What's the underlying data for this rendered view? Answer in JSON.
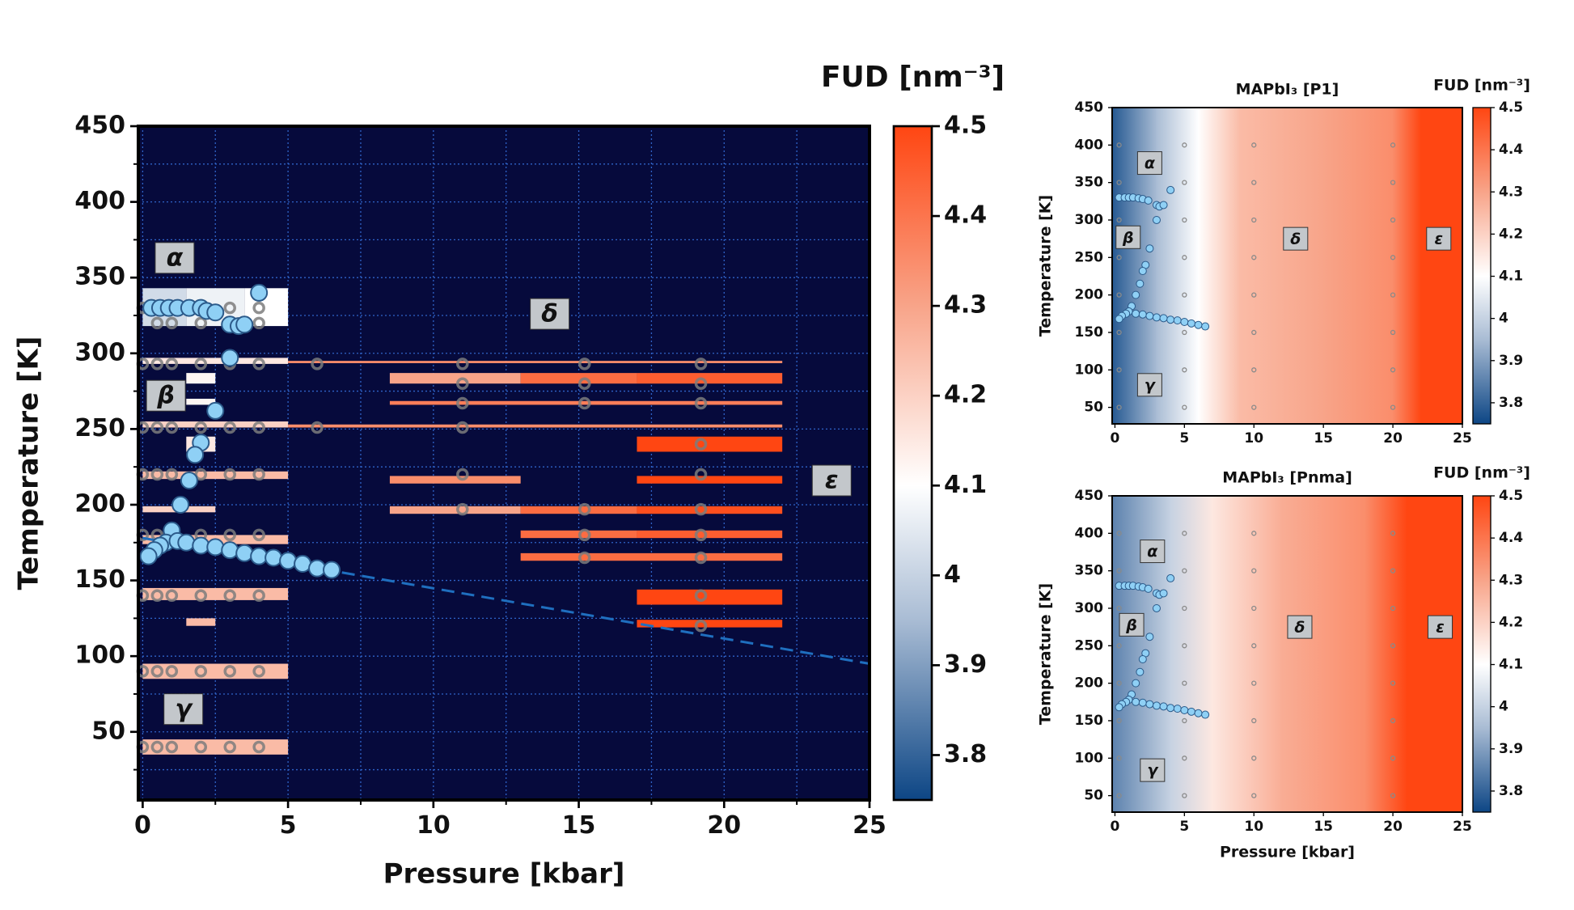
{
  "chart_data": [
    {
      "type": "phase_map",
      "colorbar_label": "FUD [nm⁻³]",
      "x_label": "Pressure [kbar]",
      "y_label": "Temperature [K]",
      "xlim": [
        -0.15,
        25
      ],
      "ylim": [
        5,
        450
      ],
      "xticks": [
        0,
        5,
        10,
        15,
        20,
        25
      ],
      "yticks": [
        50,
        100,
        150,
        200,
        250,
        300,
        350,
        400,
        450
      ],
      "minor_xticks": [
        2.5,
        7.5,
        12.5,
        17.5,
        22.5
      ],
      "minor_yticks": [
        25,
        75,
        125,
        175,
        225,
        275,
        325,
        375,
        425
      ],
      "clim": [
        3.75,
        4.5
      ],
      "cticks": [
        3.8,
        3.9,
        4,
        4.1,
        4.2,
        4.3,
        4.4,
        4.5
      ],
      "colormap": [
        [
          3.75,
          "#0d4685"
        ],
        [
          3.95,
          "#a9bcd4"
        ],
        [
          4.1,
          "#ffffff"
        ],
        [
          4.3,
          "#f8a489"
        ],
        [
          4.5,
          "#ff4612"
        ]
      ],
      "background": "#060a3c",
      "grid": true,
      "bars": [
        {
          "x": [
            0,
            1.5
          ],
          "y": [
            318,
            343
          ],
          "value": 4.02
        },
        {
          "x": [
            1.5,
            3.5
          ],
          "y": [
            318,
            343
          ],
          "value": 4.07
        },
        {
          "x": [
            3.5,
            5
          ],
          "y": [
            318,
            343
          ],
          "value": 4.1
        },
        {
          "x": [
            0,
            5
          ],
          "y": [
            293,
            297
          ],
          "value": 4.15
        },
        {
          "x": [
            5,
            22
          ],
          "y": [
            293.5,
            295
          ],
          "value": 4.35
        },
        {
          "x": [
            1.5,
            2.5
          ],
          "y": [
            280,
            287
          ],
          "value": 4.12
        },
        {
          "x": [
            8.5,
            13
          ],
          "y": [
            280,
            287
          ],
          "value": 4.3
        },
        {
          "x": [
            13,
            17
          ],
          "y": [
            280,
            287
          ],
          "value": 4.42
        },
        {
          "x": [
            17,
            22
          ],
          "y": [
            280,
            287
          ],
          "value": 4.45
        },
        {
          "x": [
            1.5,
            2.5
          ],
          "y": [
            266,
            270
          ],
          "value": 4.12
        },
        {
          "x": [
            8.5,
            22
          ],
          "y": [
            266,
            268.5
          ],
          "value": 4.38
        },
        {
          "x": [
            0,
            5
          ],
          "y": [
            251,
            255
          ],
          "value": 4.2
        },
        {
          "x": [
            5,
            22
          ],
          "y": [
            251,
            253
          ],
          "value": 4.35
        },
        {
          "x": [
            1.5,
            2.5
          ],
          "y": [
            235,
            245
          ],
          "value": 4.15
        },
        {
          "x": [
            17,
            22
          ],
          "y": [
            235,
            245
          ],
          "value": 4.5
        },
        {
          "x": [
            0,
            5
          ],
          "y": [
            217,
            222
          ],
          "value": 4.25
        },
        {
          "x": [
            8.5,
            13
          ],
          "y": [
            214,
            219
          ],
          "value": 4.35
        },
        {
          "x": [
            17,
            22
          ],
          "y": [
            214,
            219
          ],
          "value": 4.5
        },
        {
          "x": [
            0,
            2.5
          ],
          "y": [
            195,
            199
          ],
          "value": 4.2
        },
        {
          "x": [
            8.5,
            13
          ],
          "y": [
            194,
            199
          ],
          "value": 4.3
        },
        {
          "x": [
            13,
            17
          ],
          "y": [
            194,
            199
          ],
          "value": 4.42
        },
        {
          "x": [
            17,
            22
          ],
          "y": [
            194,
            199
          ],
          "value": 4.48
        },
        {
          "x": [
            0,
            5
          ],
          "y": [
            174,
            180
          ],
          "value": 4.25
        },
        {
          "x": [
            13,
            17
          ],
          "y": [
            178,
            183
          ],
          "value": 4.42
        },
        {
          "x": [
            17,
            22
          ],
          "y": [
            178,
            183
          ],
          "value": 4.45
        },
        {
          "x": [
            13,
            22
          ],
          "y": [
            163,
            168
          ],
          "value": 4.42
        },
        {
          "x": [
            0,
            5
          ],
          "y": [
            137,
            145
          ],
          "value": 4.25
        },
        {
          "x": [
            17,
            22
          ],
          "y": [
            134,
            144
          ],
          "value": 4.5
        },
        {
          "x": [
            1.5,
            2.5
          ],
          "y": [
            120,
            125
          ],
          "value": 4.25
        },
        {
          "x": [
            17,
            22
          ],
          "y": [
            119,
            124
          ],
          "value": 4.5
        },
        {
          "x": [
            0,
            5
          ],
          "y": [
            85,
            95
          ],
          "value": 4.25
        },
        {
          "x": [
            0,
            5
          ],
          "y": [
            35,
            45
          ],
          "value": 4.25
        }
      ],
      "measured": {
        "x": [
          0,
          0.5,
          1,
          2,
          3,
          4,
          0.5,
          1,
          2,
          3,
          4,
          0,
          0.5,
          1,
          2,
          3,
          4,
          6,
          0,
          0.5,
          1,
          2,
          3,
          4,
          6,
          0,
          0.5,
          1,
          2,
          3,
          4,
          0,
          0.5,
          1,
          2,
          3,
          4,
          0,
          0.5,
          1,
          2,
          3,
          4,
          0,
          0.5,
          1,
          2,
          3,
          4,
          0,
          0.5,
          1,
          2,
          3,
          4,
          11,
          11,
          11,
          11,
          11,
          11,
          15.2,
          15.2,
          15.2,
          15.2,
          15.2,
          15.2,
          19.2,
          19.2,
          19.2,
          19.2,
          19.2,
          19.2,
          19.2,
          19.2,
          19.2,
          19.2
        ],
        "y": [
          330,
          330,
          330,
          330,
          330,
          330,
          320,
          320,
          320,
          320,
          320,
          293,
          293,
          293,
          293,
          293,
          293,
          293,
          251,
          251,
          251,
          251,
          251,
          251,
          251,
          220,
          220,
          220,
          220,
          220,
          220,
          180,
          180,
          180,
          180,
          180,
          180,
          140,
          140,
          140,
          140,
          140,
          140,
          90,
          90,
          90,
          90,
          90,
          90,
          40,
          40,
          40,
          40,
          40,
          40,
          293,
          280,
          267,
          251,
          220,
          197,
          293,
          280,
          267,
          197,
          180,
          165,
          293,
          280,
          267,
          240,
          220,
          197,
          180,
          165,
          140,
          120
        ]
      },
      "transitions": {
        "x": [
          0.3,
          0.6,
          0.9,
          1.2,
          1.6,
          2,
          2.2,
          2.5,
          3,
          3.3,
          3.5,
          4,
          3,
          2.5,
          2,
          1.8,
          1.6,
          1.3,
          1,
          0.8,
          0.6,
          0.4,
          0.2,
          1.2,
          1.5,
          2,
          2.5,
          3,
          3.5,
          4,
          4.5,
          5,
          5.5,
          6,
          6.5
        ],
        "y": [
          330,
          330,
          330,
          330,
          330,
          330,
          328,
          327,
          319,
          318,
          319,
          340,
          297,
          262,
          241,
          233,
          216,
          200,
          183,
          175,
          173,
          170,
          166,
          176,
          175,
          173,
          172,
          170,
          168,
          166,
          165,
          163,
          161,
          158,
          157
        ]
      },
      "boundary_line": {
        "x": [
          0,
          25
        ],
        "y": [
          178,
          95
        ]
      },
      "phases": [
        {
          "label": "α",
          "x": 1.1,
          "y": 363
        },
        {
          "label": "β",
          "x": 0.8,
          "y": 272
        },
        {
          "label": "γ",
          "x": 1.4,
          "y": 65
        },
        {
          "label": "δ",
          "x": 14,
          "y": 326
        },
        {
          "label": "ε",
          "x": 23.7,
          "y": 216
        }
      ]
    },
    {
      "type": "contour",
      "title": "MAPbI₃ [P1]",
      "colorbar_label": "FUD [nm⁻³]",
      "y_label": "Temperature [K]",
      "xlim": [
        -0.2,
        25
      ],
      "ylim": [
        28,
        450
      ],
      "xticks": [
        0,
        5,
        10,
        15,
        20,
        25
      ],
      "yticks": [
        50,
        100,
        150,
        200,
        250,
        300,
        350,
        400,
        450
      ],
      "clim": [
        3.75,
        4.5
      ],
      "cticks": [
        3.8,
        3.9,
        4,
        4.1,
        4.2,
        4.3,
        4.4,
        4.5
      ],
      "colormap": [
        [
          3.75,
          "#0d4685"
        ],
        [
          3.95,
          "#a9bcd4"
        ],
        [
          4.1,
          "#ffffff"
        ],
        [
          4.3,
          "#f8a489"
        ],
        [
          4.5,
          "#ff4612"
        ]
      ],
      "field": {
        "x": [
          -0.2,
          3,
          6,
          9,
          15,
          20,
          22,
          25
        ],
        "values": [
          3.78,
          3.95,
          4.1,
          4.25,
          4.3,
          4.35,
          4.5,
          4.5
        ]
      },
      "measured_p": [
        0.3,
        5,
        10,
        20
      ],
      "measured_t": [
        50,
        100,
        150,
        200,
        250,
        300,
        350,
        400
      ],
      "transitions": {
        "x": [
          0.3,
          0.7,
          1,
          1.3,
          1.7,
          2,
          2.4,
          3,
          3.2,
          3.5,
          4,
          3,
          2.5,
          2.2,
          2,
          1.8,
          1.5,
          1.2,
          1,
          0.8,
          0.5,
          0.3,
          1.5,
          2,
          2.5,
          3,
          3.5,
          4,
          4.5,
          5,
          5.5,
          6,
          6.5
        ],
        "y": [
          330,
          330,
          330,
          330,
          329,
          328,
          326,
          320,
          318,
          320,
          340,
          300,
          262,
          240,
          232,
          215,
          200,
          185,
          178,
          175,
          172,
          168,
          175,
          174,
          172,
          170,
          169,
          167,
          166,
          164,
          162,
          160,
          158
        ]
      },
      "phases": [
        {
          "label": "α",
          "x": 2.5,
          "y": 376
        },
        {
          "label": "β",
          "x": 0.95,
          "y": 277
        },
        {
          "label": "γ",
          "x": 2.5,
          "y": 80
        },
        {
          "label": "δ",
          "x": 13,
          "y": 275
        },
        {
          "label": "ε",
          "x": 23.3,
          "y": 275
        }
      ]
    },
    {
      "type": "contour",
      "title": "MAPbI₃ [Pnma]",
      "colorbar_label": "FUD [nm⁻³]",
      "x_label": "Pressure [kbar]",
      "y_label": "Temperature [K]",
      "xlim": [
        -0.2,
        25
      ],
      "ylim": [
        28,
        450
      ],
      "xticks": [
        0,
        5,
        10,
        15,
        20,
        25
      ],
      "yticks": [
        50,
        100,
        150,
        200,
        250,
        300,
        350,
        400,
        450
      ],
      "clim": [
        3.75,
        4.5
      ],
      "cticks": [
        3.8,
        3.9,
        4,
        4.1,
        4.2,
        4.3,
        4.4,
        4.5
      ],
      "colormap": [
        [
          3.75,
          "#0d4685"
        ],
        [
          3.95,
          "#a9bcd4"
        ],
        [
          4.1,
          "#ffffff"
        ],
        [
          4.3,
          "#f8a489"
        ],
        [
          4.5,
          "#ff4612"
        ]
      ],
      "field": {
        "x": [
          -0.2,
          4,
          7,
          12,
          18,
          21,
          25
        ],
        "values": [
          3.85,
          4,
          4.15,
          4.28,
          4.35,
          4.5,
          4.5
        ]
      },
      "measured_p": [
        0.3,
        5,
        10,
        20
      ],
      "measured_t": [
        50,
        100,
        150,
        200,
        250,
        300,
        350,
        400
      ],
      "transitions": {
        "x": [
          0.3,
          0.7,
          1,
          1.3,
          1.7,
          2,
          2.4,
          3,
          3.2,
          3.5,
          4,
          3,
          2.5,
          2.2,
          2,
          1.8,
          1.5,
          1.2,
          1,
          0.8,
          0.5,
          0.3,
          1.5,
          2,
          2.5,
          3,
          3.5,
          4,
          4.5,
          5,
          5.5,
          6,
          6.5
        ],
        "y": [
          330,
          330,
          330,
          330,
          329,
          328,
          326,
          320,
          318,
          320,
          340,
          300,
          262,
          240,
          232,
          215,
          200,
          185,
          178,
          175,
          172,
          168,
          175,
          174,
          172,
          170,
          169,
          167,
          166,
          164,
          162,
          160,
          158
        ]
      },
      "phases": [
        {
          "label": "α",
          "x": 2.7,
          "y": 376
        },
        {
          "label": "β",
          "x": 1.2,
          "y": 278
        },
        {
          "label": "γ",
          "x": 2.7,
          "y": 84
        },
        {
          "label": "δ",
          "x": 13.3,
          "y": 275
        },
        {
          "label": "ε",
          "x": 23.4,
          "y": 275
        }
      ]
    }
  ]
}
